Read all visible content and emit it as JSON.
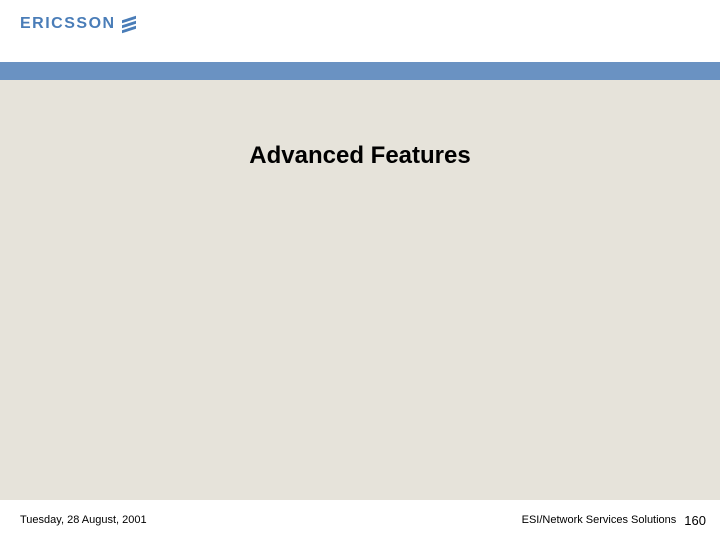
{
  "brand": {
    "name": "ERICSSON",
    "logo_color": "#4a7db8"
  },
  "layout": {
    "band_color": "#6a92c2",
    "content_bg": "#e6e3da",
    "page_bg": "#ffffff"
  },
  "slide": {
    "title": "Advanced Features",
    "title_fontsize": 24,
    "title_weight": "bold",
    "title_color": "#000000"
  },
  "footer": {
    "date": "Tuesday, 28 August, 2001",
    "org": "ESI/Network Services Solutions",
    "page_number": "160",
    "fontsize": 11
  }
}
